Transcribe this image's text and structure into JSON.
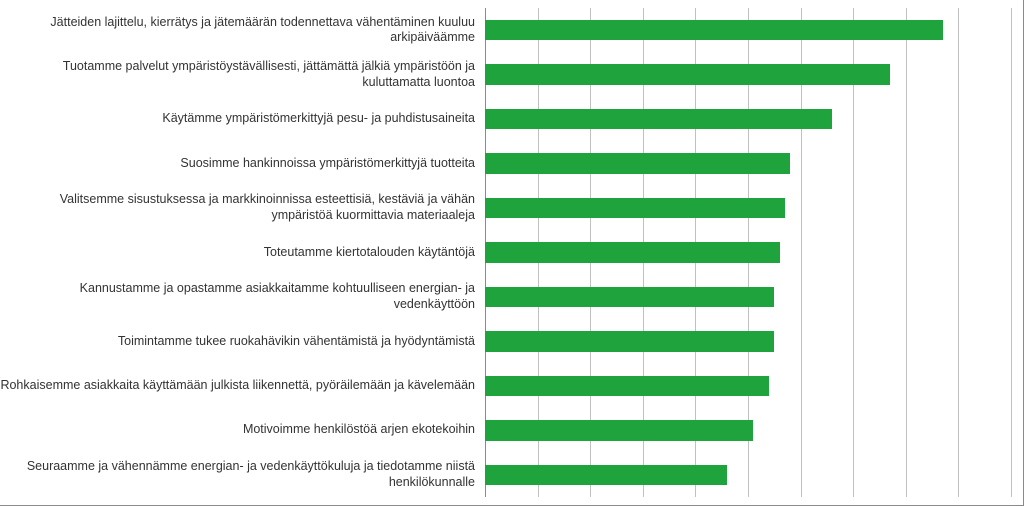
{
  "chart": {
    "type": "bar-horizontal",
    "background_color": "#ffffff",
    "grid_color": "#c0c0c0",
    "axis_color": "#8a8a8a",
    "bar_color": "#1fa43d",
    "label_fontsize": 12.5,
    "label_color": "#333333",
    "label_align": "right",
    "bar_height_ratio": 0.46,
    "xlim": [
      0,
      100
    ],
    "xtick_step": 10,
    "grid_count": 10,
    "items": [
      {
        "label": "Jätteiden lajittelu, kierrätys ja jätemäärän todennettava vähentäminen kuuluu arkipäiväämme",
        "value": 87
      },
      {
        "label": "Tuotamme palvelut ympäristöystävällisesti, jättämättä jälkiä ympäristöön ja kuluttamatta luontoa",
        "value": 77
      },
      {
        "label": "Käytämme ympäristömerkittyjä pesu- ja puhdistusaineita",
        "value": 66
      },
      {
        "label": "Suosimme hankinnoissa ympäristömerkittyjä tuotteita",
        "value": 58
      },
      {
        "label": "Valitsemme sisustuksessa ja markkinoinnissa esteettisiä, kestäviä ja vähän ympäristöä kuormittavia materiaaleja",
        "value": 57
      },
      {
        "label": "Toteutamme kiertotalouden käytäntöjä",
        "value": 56
      },
      {
        "label": "Kannustamme ja opastamme asiakkaitamme kohtuulliseen energian- ja vedenkäyttöön",
        "value": 55
      },
      {
        "label": "Toimintamme tukee ruokahävikin vähentämistä ja hyödyntämistä",
        "value": 55
      },
      {
        "label": "Rohkaisemme asiakkaita käyttämään julkista liikennettä, pyöräilemään ja kävelemään",
        "value": 54
      },
      {
        "label": "Motivoimme henkilöstöä arjen ekotekoihin",
        "value": 51
      },
      {
        "label": "Seuraamme ja vähennämme energian- ja vedenkäyttökuluja ja tiedotamme niistä henkilökunnalle",
        "value": 46
      }
    ]
  }
}
